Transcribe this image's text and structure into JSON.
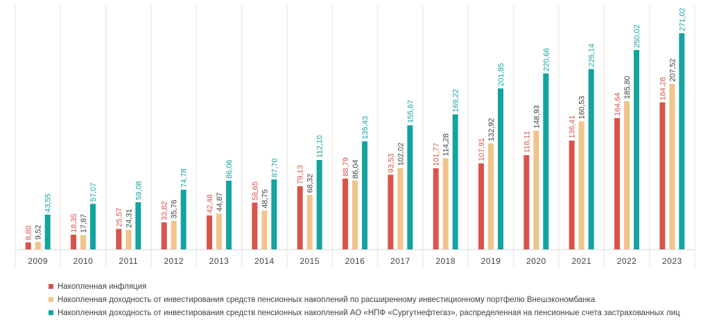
{
  "chart_data": {
    "type": "bar",
    "categories": [
      "2009",
      "2010",
      "2011",
      "2012",
      "2013",
      "2014",
      "2015",
      "2016",
      "2017",
      "2018",
      "2019",
      "2020",
      "2021",
      "2022",
      "2023"
    ],
    "series": [
      {
        "name": "Накопленная инфляция",
        "color": "#d9534a",
        "labels": [
          "8,80",
          "18,35",
          "25,57",
          "33,82",
          "42,48",
          "58,65",
          "79,13",
          "88,79",
          "93,53",
          "101,77",
          "107,91",
          "118,11",
          "136,41",
          "164,64",
          "184,28"
        ],
        "values": [
          8.8,
          18.35,
          25.57,
          33.82,
          42.48,
          58.65,
          79.13,
          88.79,
          93.53,
          101.77,
          107.91,
          118.11,
          136.41,
          164.64,
          184.28
        ]
      },
      {
        "name": "Накопленная доходность от инвестирования средств пенсионных накоплений по расширенному инвестиционному портфелю Внешэкономбанка",
        "color": "#f2c48c",
        "labels": [
          "9,52",
          "17,87",
          "24,31",
          "35,76",
          "44,87",
          "48,75",
          "68,32",
          "86,04",
          "102,02",
          "114,28",
          "132,92",
          "148,93",
          "160,53",
          "185,80",
          "207,52"
        ],
        "values": [
          9.52,
          17.87,
          24.31,
          35.76,
          44.87,
          48.75,
          68.32,
          86.04,
          102.02,
          114.28,
          132.92,
          148.93,
          160.53,
          185.8,
          207.52
        ]
      },
      {
        "name": "Накопленная доходность от инвестирования средств пенсионных накоплений АО «НПФ «Сургутнефтегаз», распределенная на пенсионные счета застрахованных лиц",
        "color": "#13a3a0",
        "labels": [
          "43,55",
          "57,07",
          "59,08",
          "74,78",
          "86,06",
          "87,70",
          "112,10",
          "135,43",
          "155,67",
          "169,22",
          "201,85",
          "220,66",
          "226,14",
          "250,02",
          "271,02"
        ],
        "values": [
          43.55,
          57.07,
          59.08,
          74.78,
          86.06,
          87.7,
          112.1,
          135.43,
          155.67,
          169.22,
          201.85,
          220.66,
          226.14,
          250.02,
          271.02
        ]
      }
    ],
    "ylim": [
      0,
      271.02
    ],
    "grid": "vertical category separators",
    "legend_position": "bottom-left",
    "label_colors": [
      "#d9534a",
      "#404040",
      "#13a3a0"
    ]
  }
}
